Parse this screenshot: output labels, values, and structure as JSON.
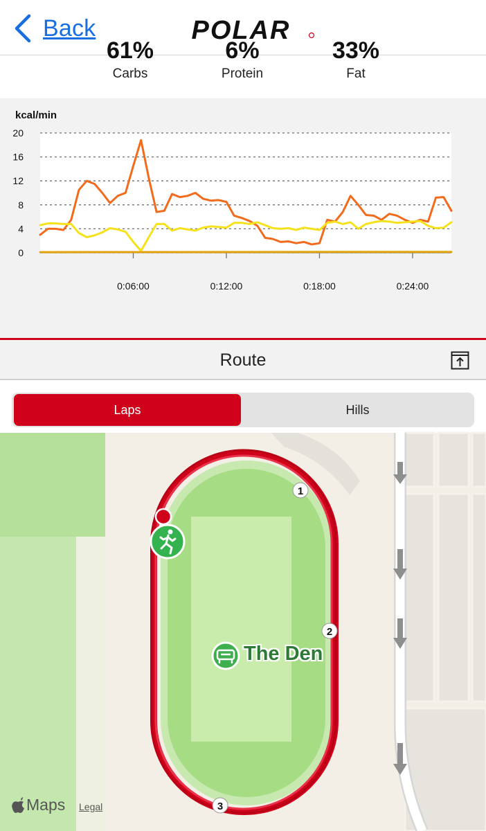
{
  "header": {
    "back_label": "Back",
    "brand": "POLAR"
  },
  "macros": [
    {
      "value": "61%",
      "label": "Carbs"
    },
    {
      "value": "6%",
      "label": "Protein"
    },
    {
      "value": "33%",
      "label": "Fat"
    }
  ],
  "chart_data": {
    "type": "line",
    "ylabel": "kcal/min",
    "ylim": [
      0,
      20
    ],
    "yticks": [
      0,
      4,
      8,
      12,
      16,
      20
    ],
    "x_unit": "elapsed minutes",
    "xlim": [
      0,
      26.5
    ],
    "xticks": [
      {
        "value": 6,
        "label": "0:06:00"
      },
      {
        "value": 12,
        "label": "0:12:00"
      },
      {
        "value": 18,
        "label": "0:18:00"
      },
      {
        "value": 24,
        "label": "0:24:00"
      }
    ],
    "grid": "horizontal dotted",
    "series": [
      {
        "color": "#f26b1d",
        "x": [
          0,
          0.5,
          1.0,
          1.5,
          2.0,
          2.5,
          3.0,
          3.5,
          4.0,
          4.5,
          5.0,
          5.5,
          6.0,
          6.5,
          7.0,
          7.5,
          8.0,
          8.5,
          9.0,
          9.5,
          10.0,
          10.5,
          11.0,
          11.5,
          12.0,
          12.5,
          13.0,
          13.5,
          14.0,
          14.5,
          15.0,
          15.5,
          16.0,
          16.5,
          17.0,
          17.5,
          18.0,
          18.5,
          19.0,
          19.5,
          20.0,
          20.5,
          21.0,
          21.5,
          22.0,
          22.5,
          23.0,
          23.5,
          24.0,
          24.5,
          25.0,
          25.5,
          26.0,
          26.5
        ],
        "values": [
          3.0,
          4.0,
          4.0,
          3.8,
          5.5,
          10.5,
          12.0,
          11.5,
          10.0,
          8.3,
          9.5,
          10.0,
          14.5,
          18.8,
          12.5,
          6.8,
          7.0,
          9.8,
          9.3,
          9.5,
          10.0,
          9.0,
          8.7,
          8.8,
          8.5,
          6.2,
          5.8,
          5.3,
          4.5,
          2.5,
          2.3,
          1.8,
          1.9,
          1.6,
          1.8,
          1.4,
          1.6,
          5.5,
          5.2,
          6.8,
          9.5,
          8.0,
          6.3,
          6.2,
          5.5,
          6.5,
          6.2,
          5.5,
          5.0,
          5.5,
          5.2,
          9.2,
          9.3,
          7.0
        ]
      },
      {
        "color": "#f5e21c",
        "x": [
          0,
          0.5,
          1.0,
          1.5,
          2.0,
          2.5,
          3.0,
          3.5,
          4.0,
          4.5,
          5.0,
          5.5,
          6.0,
          6.5,
          7.0,
          7.5,
          8.0,
          8.5,
          9.0,
          9.5,
          10.0,
          10.5,
          11.0,
          11.5,
          12.0,
          12.5,
          13.0,
          13.5,
          14.0,
          14.5,
          15.0,
          15.5,
          16.0,
          16.5,
          17.0,
          17.5,
          18.0,
          18.5,
          19.0,
          19.5,
          20.0,
          20.5,
          21.0,
          21.5,
          22.0,
          22.5,
          23.0,
          23.5,
          24.0,
          24.5,
          25.0,
          25.5,
          26.0,
          26.5
        ],
        "values": [
          4.6,
          4.9,
          4.9,
          4.8,
          4.8,
          3.3,
          2.6,
          2.9,
          3.4,
          4.1,
          3.9,
          3.5,
          1.8,
          0.3,
          2.6,
          4.8,
          4.8,
          3.7,
          4.1,
          3.9,
          3.7,
          4.2,
          4.4,
          4.3,
          4.2,
          5.0,
          5.0,
          4.8,
          5.1,
          4.6,
          4.1,
          4.0,
          4.1,
          3.8,
          4.2,
          4.0,
          3.8,
          5.0,
          5.2,
          4.8,
          5.1,
          4.0,
          4.8,
          5.1,
          5.3,
          5.2,
          5.0,
          5.1,
          5.2,
          5.3,
          4.5,
          4.1,
          4.2,
          5.1
        ]
      },
      {
        "color": "#e2a510",
        "x": [
          0,
          26.5
        ],
        "values": [
          0.1,
          0.15
        ]
      }
    ]
  },
  "route": {
    "title": "Route",
    "tabs": [
      {
        "label": "Laps",
        "selected": true
      },
      {
        "label": "Hills",
        "selected": false
      }
    ]
  },
  "map": {
    "venue": "The Den",
    "lap_markers": [
      "1",
      "2",
      "3"
    ],
    "provider": "Maps",
    "legal": "Legal"
  }
}
